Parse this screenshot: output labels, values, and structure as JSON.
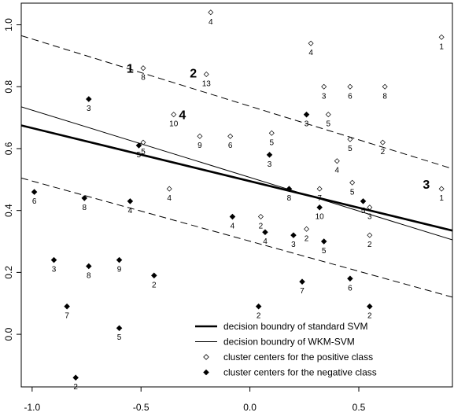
{
  "chart_data": {
    "type": "scatter",
    "title": "",
    "xlabel": "",
    "ylabel": "",
    "xlim": [
      -1.05,
      0.93
    ],
    "ylim": [
      -0.17,
      1.07
    ],
    "x_ticks": [
      -1.0,
      -0.5,
      0.0,
      0.5
    ],
    "x_tick_labels": [
      "-1.0",
      "-0.5",
      "0.0",
      "0.5"
    ],
    "y_ticks": [
      0.0,
      0.2,
      0.4,
      0.6,
      0.8,
      1.0
    ],
    "y_tick_labels": [
      "0.0",
      "0.2",
      "0.4",
      "0.6",
      "0.8",
      "1.0"
    ],
    "grid": false,
    "legend_position": "bottom-right",
    "series": [
      {
        "name": "cluster centers for the positive class",
        "marker": "hollow-diamond",
        "points": [
          {
            "x": -0.18,
            "y": 1.04,
            "label": "4"
          },
          {
            "x": 0.28,
            "y": 0.94,
            "label": "4"
          },
          {
            "x": 0.88,
            "y": 0.96,
            "label": "1"
          },
          {
            "x": -0.49,
            "y": 0.86,
            "label": "8"
          },
          {
            "x": -0.2,
            "y": 0.84,
            "label": "13"
          },
          {
            "x": 0.34,
            "y": 0.8,
            "label": "3"
          },
          {
            "x": 0.46,
            "y": 0.8,
            "label": "6"
          },
          {
            "x": 0.62,
            "y": 0.8,
            "label": "8"
          },
          {
            "x": -0.35,
            "y": 0.71,
            "label": "10"
          },
          {
            "x": 0.36,
            "y": 0.71,
            "label": "5"
          },
          {
            "x": -0.23,
            "y": 0.64,
            "label": "9"
          },
          {
            "x": -0.09,
            "y": 0.64,
            "label": "6"
          },
          {
            "x": 0.1,
            "y": 0.65,
            "label": "5"
          },
          {
            "x": 0.46,
            "y": 0.63,
            "label": "5"
          },
          {
            "x": 0.61,
            "y": 0.62,
            "label": "2"
          },
          {
            "x": -0.49,
            "y": 0.62,
            "label": "5"
          },
          {
            "x": 0.4,
            "y": 0.56,
            "label": "4"
          },
          {
            "x": 0.47,
            "y": 0.49,
            "label": "5"
          },
          {
            "x": -0.37,
            "y": 0.47,
            "label": "4"
          },
          {
            "x": 0.32,
            "y": 0.47,
            "label": "7"
          },
          {
            "x": 0.88,
            "y": 0.47,
            "label": "1"
          },
          {
            "x": 0.05,
            "y": 0.38,
            "label": "2"
          },
          {
            "x": 0.26,
            "y": 0.34,
            "label": "2"
          },
          {
            "x": 0.55,
            "y": 0.41,
            "label": "3"
          },
          {
            "x": 0.55,
            "y": 0.32,
            "label": "2"
          }
        ]
      },
      {
        "name": "cluster centers for the negative class",
        "marker": "filled-diamond",
        "points": [
          {
            "x": -0.74,
            "y": 0.76,
            "label": "3"
          },
          {
            "x": 0.26,
            "y": 0.71,
            "label": "3"
          },
          {
            "x": -0.51,
            "y": 0.61,
            "label": "5"
          },
          {
            "x": 0.09,
            "y": 0.58,
            "label": "3"
          },
          {
            "x": -0.99,
            "y": 0.46,
            "label": "6"
          },
          {
            "x": -0.76,
            "y": 0.44,
            "label": "8"
          },
          {
            "x": -0.55,
            "y": 0.43,
            "label": "4"
          },
          {
            "x": 0.18,
            "y": 0.47,
            "label": "8"
          },
          {
            "x": 0.52,
            "y": 0.43,
            "label": "5"
          },
          {
            "x": 0.32,
            "y": 0.41,
            "label": "10"
          },
          {
            "x": -0.08,
            "y": 0.38,
            "label": "4"
          },
          {
            "x": 0.07,
            "y": 0.33,
            "label": "4"
          },
          {
            "x": 0.2,
            "y": 0.32,
            "label": "3"
          },
          {
            "x": 0.34,
            "y": 0.3,
            "label": "5"
          },
          {
            "x": -0.9,
            "y": 0.24,
            "label": "3"
          },
          {
            "x": -0.74,
            "y": 0.22,
            "label": "8"
          },
          {
            "x": -0.6,
            "y": 0.24,
            "label": "9"
          },
          {
            "x": -0.44,
            "y": 0.19,
            "label": "2"
          },
          {
            "x": 0.24,
            "y": 0.17,
            "label": "7"
          },
          {
            "x": 0.46,
            "y": 0.18,
            "label": "6"
          },
          {
            "x": -0.84,
            "y": 0.09,
            "label": "7"
          },
          {
            "x": 0.04,
            "y": 0.09,
            "label": "2"
          },
          {
            "x": 0.55,
            "y": 0.09,
            "label": "2"
          },
          {
            "x": -0.6,
            "y": 0.02,
            "label": "5"
          },
          {
            "x": -0.8,
            "y": -0.14,
            "label": "2"
          }
        ]
      }
    ],
    "lines": [
      {
        "name": "decision boundry of standard SVM",
        "style": "thick-solid",
        "points": [
          [
            -1.05,
            0.675
          ],
          [
            0.93,
            0.335
          ]
        ]
      },
      {
        "name": "decision boundry of WKM-SVM",
        "style": "thin-solid",
        "points": [
          [
            -1.05,
            0.735
          ],
          [
            0.93,
            0.305
          ]
        ]
      },
      {
        "style": "dashed",
        "points": [
          [
            -1.05,
            0.965
          ],
          [
            0.93,
            0.535
          ]
        ]
      },
      {
        "style": "dashed",
        "points": [
          [
            -1.05,
            0.505
          ],
          [
            0.93,
            0.12
          ]
        ]
      }
    ],
    "annotations": [
      {
        "text": "1",
        "x": -0.55,
        "y": 0.86
      },
      {
        "text": "2",
        "x": -0.26,
        "y": 0.845
      },
      {
        "text": "4",
        "x": -0.31,
        "y": 0.71
      },
      {
        "text": "3",
        "x": 0.81,
        "y": 0.485
      }
    ]
  }
}
